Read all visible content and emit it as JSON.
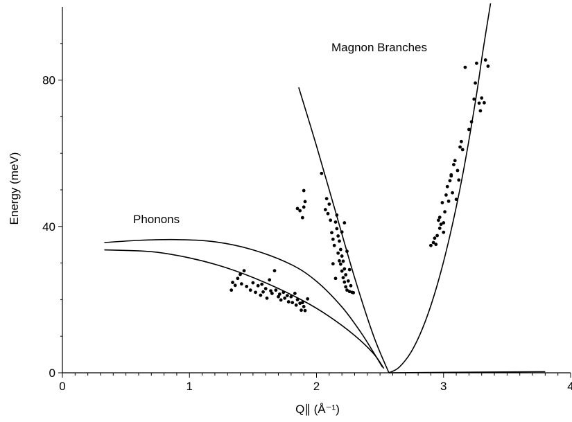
{
  "chart_data": {
    "type": "scatter",
    "title": "",
    "xlabel": "Q∥ (Å⁻¹)",
    "ylabel": "Energy (meV)",
    "xlim": [
      0,
      4
    ],
    "ylim": [
      0,
      100
    ],
    "x_ticks": [
      0,
      1,
      2,
      3,
      4
    ],
    "x_tick_labels": [
      "0",
      "1",
      "2",
      "3",
      "4"
    ],
    "y_ticks": [
      0,
      40,
      80
    ],
    "y_tick_labels": [
      "0",
      "40",
      "80"
    ],
    "grid": false,
    "legend": "none",
    "annotations": [
      {
        "text": "Magnon Branches",
        "x": 2.6,
        "y": 88
      },
      {
        "text": "Phonons",
        "x": 0.7,
        "y": 42
      }
    ],
    "curves": [
      {
        "name": "phonon-upper",
        "points": [
          [
            0.33,
            35.6
          ],
          [
            0.6,
            36.2
          ],
          [
            0.9,
            36.4
          ],
          [
            1.2,
            35.8
          ],
          [
            1.5,
            33.6
          ],
          [
            1.8,
            29.6
          ],
          [
            2.0,
            25.0
          ],
          [
            2.2,
            18.0
          ],
          [
            2.35,
            11.0
          ],
          [
            2.45,
            5.5
          ],
          [
            2.52,
            1.5
          ]
        ]
      },
      {
        "name": "phonon-lower",
        "points": [
          [
            0.33,
            33.6
          ],
          [
            0.7,
            33.1
          ],
          [
            1.0,
            31.4
          ],
          [
            1.3,
            28.6
          ],
          [
            1.6,
            24.6
          ],
          [
            1.9,
            19.6
          ],
          [
            2.1,
            15.4
          ],
          [
            2.3,
            10.2
          ],
          [
            2.45,
            5.2
          ],
          [
            2.53,
            1.2
          ]
        ]
      },
      {
        "name": "magnon-left",
        "points": [
          [
            1.86,
            78.0
          ],
          [
            2.0,
            62.0
          ],
          [
            2.15,
            44.0
          ],
          [
            2.3,
            26.0
          ],
          [
            2.45,
            10.0
          ],
          [
            2.57,
            0.0
          ]
        ]
      },
      {
        "name": "magnon-right",
        "points": [
          [
            2.57,
            0.0
          ],
          [
            2.65,
            1.5
          ],
          [
            2.75,
            6.0
          ],
          [
            2.85,
            13.5
          ],
          [
            2.95,
            24.0
          ],
          [
            3.05,
            37.5
          ],
          [
            3.15,
            54.0
          ],
          [
            3.25,
            74.0
          ],
          [
            3.31,
            88.0
          ],
          [
            3.37,
            101.0
          ]
        ]
      },
      {
        "name": "baseline",
        "points": [
          [
            2.57,
            0.0
          ],
          [
            3.8,
            0.3
          ]
        ]
      }
    ],
    "series": [
      {
        "name": "phonon-data",
        "points": [
          [
            1.33,
            22.6
          ],
          [
            1.34,
            24.7
          ],
          [
            1.36,
            23.9
          ],
          [
            1.38,
            25.8
          ],
          [
            1.4,
            26.9
          ],
          [
            1.41,
            24.3
          ],
          [
            1.43,
            27.9
          ],
          [
            1.45,
            23.6
          ],
          [
            1.48,
            22.6
          ],
          [
            1.5,
            24.6
          ],
          [
            1.52,
            22.0
          ],
          [
            1.54,
            23.8
          ],
          [
            1.56,
            21.2
          ],
          [
            1.57,
            24.2
          ],
          [
            1.58,
            22.1
          ],
          [
            1.6,
            23.0
          ],
          [
            1.61,
            20.4
          ],
          [
            1.63,
            25.4
          ],
          [
            1.64,
            22.4
          ],
          [
            1.65,
            21.7
          ],
          [
            1.67,
            27.9
          ],
          [
            1.68,
            22.6
          ],
          [
            1.7,
            20.8
          ],
          [
            1.71,
            21.5
          ],
          [
            1.72,
            19.9
          ],
          [
            1.74,
            22.0
          ],
          [
            1.75,
            20.4
          ],
          [
            1.77,
            21.1
          ],
          [
            1.78,
            19.4
          ],
          [
            1.8,
            20.8
          ],
          [
            1.81,
            19.2
          ],
          [
            1.83,
            21.7
          ],
          [
            1.84,
            18.5
          ],
          [
            1.85,
            20.0
          ],
          [
            1.87,
            19.0
          ],
          [
            1.88,
            17.1
          ],
          [
            1.89,
            19.2
          ],
          [
            1.9,
            18.1
          ],
          [
            1.91,
            17.0
          ],
          [
            1.93,
            20.2
          ],
          [
            1.87,
            44.3
          ],
          [
            1.9,
            45.3
          ],
          [
            1.89,
            42.4
          ],
          [
            1.85,
            44.9
          ],
          [
            1.91,
            46.8
          ],
          [
            1.9,
            49.8
          ]
        ]
      },
      {
        "name": "magnon-left-data",
        "points": [
          [
            2.04,
            54.5
          ],
          [
            2.07,
            44.6
          ],
          [
            2.08,
            47.6
          ],
          [
            2.09,
            43.5
          ],
          [
            2.1,
            46.1
          ],
          [
            2.11,
            41.7
          ],
          [
            2.12,
            38.3
          ],
          [
            2.13,
            36.5
          ],
          [
            2.14,
            34.8
          ],
          [
            2.15,
            41.2
          ],
          [
            2.16,
            39.4
          ],
          [
            2.17,
            32.7
          ],
          [
            2.17,
            37.4
          ],
          [
            2.18,
            30.6
          ],
          [
            2.18,
            36.0
          ],
          [
            2.19,
            29.7
          ],
          [
            2.19,
            33.7
          ],
          [
            2.2,
            27.8
          ],
          [
            2.2,
            31.9
          ],
          [
            2.21,
            26.0
          ],
          [
            2.21,
            30.5
          ],
          [
            2.22,
            24.8
          ],
          [
            2.22,
            28.4
          ],
          [
            2.23,
            23.5
          ],
          [
            2.23,
            26.8
          ],
          [
            2.24,
            22.6
          ],
          [
            2.25,
            25.1
          ],
          [
            2.26,
            22.2
          ],
          [
            2.27,
            23.8
          ],
          [
            2.28,
            22.0
          ],
          [
            2.29,
            21.9
          ],
          [
            2.22,
            41.0
          ],
          [
            2.16,
            43.1
          ],
          [
            2.2,
            38.5
          ],
          [
            2.24,
            33.2
          ],
          [
            2.26,
            28.2
          ],
          [
            2.13,
            29.8
          ],
          [
            2.15,
            25.8
          ]
        ]
      },
      {
        "name": "magnon-right-data",
        "points": [
          [
            2.9,
            34.8
          ],
          [
            2.92,
            35.6
          ],
          [
            2.93,
            36.8
          ],
          [
            2.94,
            35.1
          ],
          [
            2.95,
            37.5
          ],
          [
            2.96,
            41.7
          ],
          [
            2.97,
            39.5
          ],
          [
            2.97,
            42.5
          ],
          [
            2.98,
            40.6
          ],
          [
            2.99,
            46.5
          ],
          [
            3.0,
            38.4
          ],
          [
            3.01,
            44.0
          ],
          [
            3.02,
            48.6
          ],
          [
            3.03,
            50.9
          ],
          [
            3.04,
            46.9
          ],
          [
            3.05,
            52.5
          ],
          [
            3.06,
            54.1
          ],
          [
            3.07,
            49.2
          ],
          [
            3.08,
            56.9
          ],
          [
            3.09,
            58.0
          ],
          [
            3.1,
            47.4
          ],
          [
            3.11,
            55.3
          ],
          [
            3.12,
            52.7
          ],
          [
            3.13,
            61.7
          ],
          [
            3.14,
            63.2
          ],
          [
            3.15,
            61.0
          ],
          [
            3.17,
            83.5
          ],
          [
            3.2,
            66.5
          ],
          [
            3.22,
            68.6
          ],
          [
            3.24,
            74.8
          ],
          [
            3.25,
            79.2
          ],
          [
            3.26,
            84.6
          ],
          [
            3.28,
            73.7
          ],
          [
            3.29,
            71.6
          ],
          [
            3.3,
            75.1
          ],
          [
            3.32,
            73.8
          ],
          [
            3.33,
            85.5
          ],
          [
            3.35,
            83.8
          ],
          [
            3.06,
            53.8
          ],
          [
            3.0,
            41.0
          ]
        ]
      }
    ]
  }
}
